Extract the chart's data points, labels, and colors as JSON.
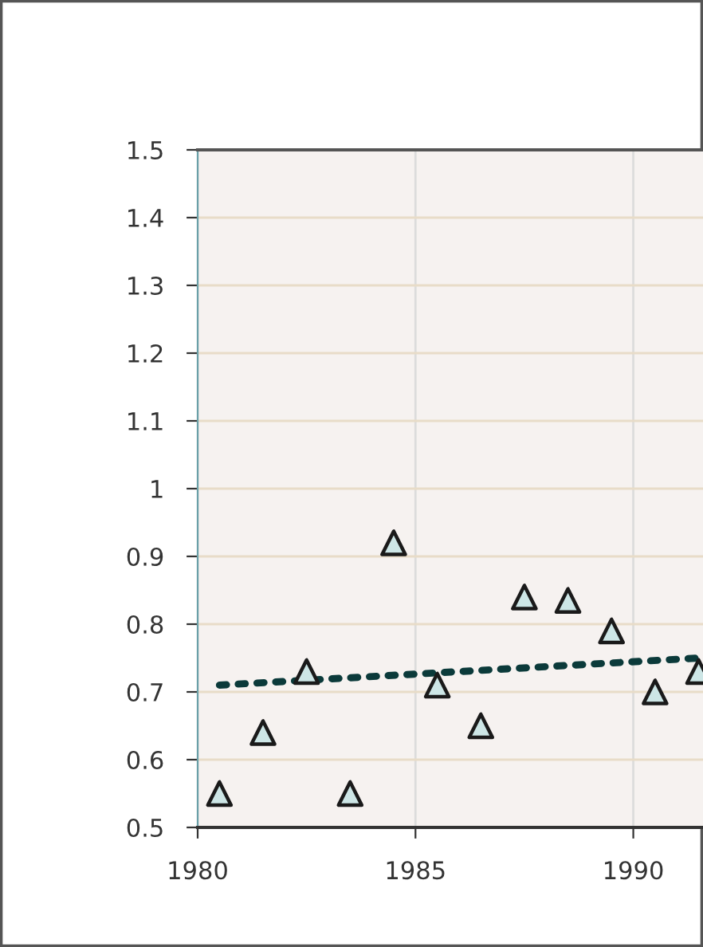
{
  "chart_data": {
    "type": "scatter",
    "xlim": [
      1980,
      1991.6
    ],
    "xticks": [
      1980,
      1985,
      1990
    ],
    "ylim": [
      0.5,
      1.5
    ],
    "yticks": [
      0.5,
      0.6,
      0.7,
      0.8,
      0.9,
      1,
      1.1,
      1.2,
      1.3,
      1.4,
      1.5
    ],
    "grid": true,
    "marker": "triangle",
    "series": [
      {
        "color": "#cde6e6",
        "x": [
          1980.5,
          1981.5,
          1982.5,
          1983.5,
          1984.5,
          1985.5,
          1986.5,
          1987.5,
          1988.5,
          1989.5,
          1990.5,
          1991.5
        ],
        "values": [
          0.55,
          0.64,
          0.73,
          0.55,
          0.92,
          0.71,
          0.65,
          0.84,
          0.835,
          0.79,
          0.7,
          0.73
        ]
      },
      {
        "type": "line",
        "color": "#0b3a3a",
        "line_style": "dotted",
        "marker": "none",
        "x": [
          1980.5,
          1991.5
        ],
        "values": [
          0.71,
          0.75
        ]
      }
    ]
  }
}
